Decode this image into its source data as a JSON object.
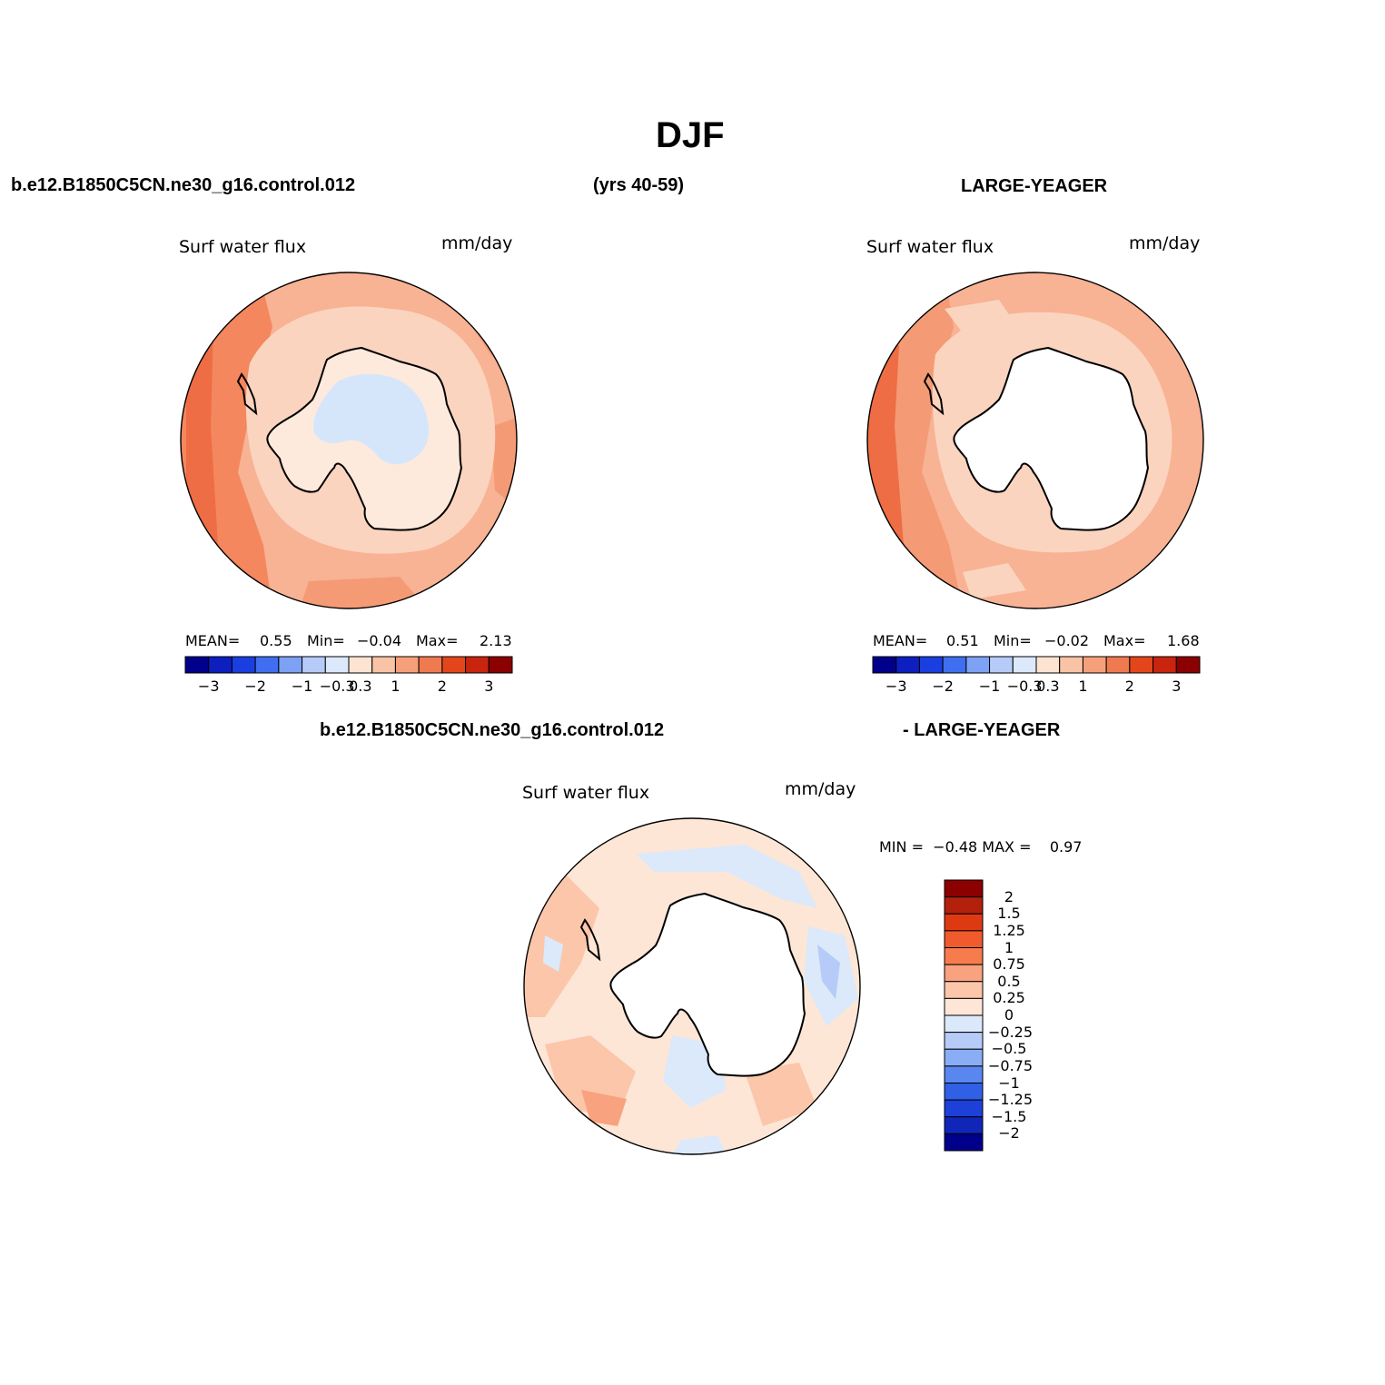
{
  "page": {
    "title": "DJF",
    "case_name": "b.e12.B1850C5CN.ne30_g16.control.012",
    "years": "(yrs 40-59)",
    "obs_name": "LARGE-YEAGER",
    "diff_title_left": "b.e12.B1850C5CN.ne30_g16.control.012",
    "diff_title_right": "- LARGE-YEAGER"
  },
  "panels": [
    {
      "variable": "Surf water flux",
      "units": "mm/day",
      "mean_label": "MEAN=",
      "mean_value": "0.55",
      "min_label": "Min=",
      "min_value": "−0.04",
      "max_label": "Max=",
      "max_value": "2.13",
      "land_fill": "ice-sheet-blue"
    },
    {
      "variable": "Surf water flux",
      "units": "mm/day",
      "mean_label": "MEAN=",
      "mean_value": "0.51",
      "min_label": "Min=",
      "min_value": "−0.02",
      "max_label": "Max=",
      "max_value": "1.68",
      "land_fill": "none"
    },
    {
      "variable": "Surf water flux",
      "units": "mm/day",
      "minmax_text": "MIN =  −0.48 MAX =    0.97",
      "land_fill": "none"
    }
  ],
  "colorbar_horizontal": {
    "colors": [
      "#00008b",
      "#0d1fbf",
      "#1a3fe0",
      "#3f6ff0",
      "#7ca1f5",
      "#b6cbf7",
      "#dbe9fb",
      "#fde4d2",
      "#f9c4a6",
      "#f6a07a",
      "#f07a50",
      "#e4461c",
      "#c8240e",
      "#8b0000"
    ],
    "ticks": [
      "−3",
      "−2",
      "−1",
      "−0.3",
      "0.3",
      "1",
      "2",
      "3"
    ]
  },
  "colorbar_vertical": {
    "colors": [
      "#8b0000",
      "#b3200b",
      "#de3a12",
      "#f05a2c",
      "#f67c4d",
      "#f9a27f",
      "#fbc6aa",
      "#fde6d6",
      "#dbe9fb",
      "#b6cbf7",
      "#8aaef5",
      "#5a86f0",
      "#3060e6",
      "#1d40d8",
      "#1026b8",
      "#00008b"
    ],
    "ticks": [
      "2",
      "1.5",
      "1.25",
      "1",
      "0.75",
      "0.5",
      "0.25",
      "0",
      "−0.25",
      "−0.5",
      "−0.75",
      "−1",
      "−1.25",
      "−1.5",
      "−2"
    ]
  }
}
